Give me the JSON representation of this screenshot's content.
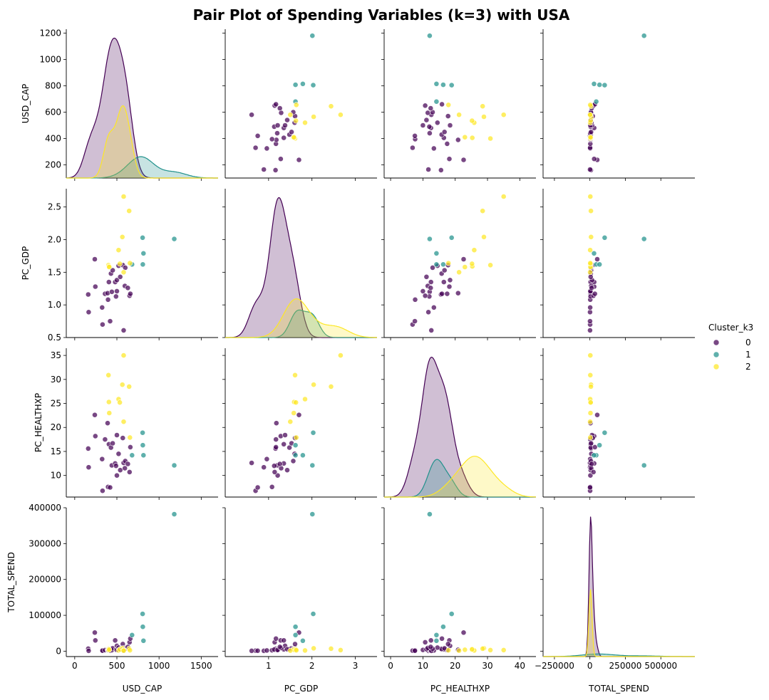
{
  "chart_data": {
    "type": "scatter",
    "title": "Pair Plot of Spending Variables (k=3) with USA",
    "variables": [
      "USD_CAP",
      "PC_GDP",
      "PC_HEALTHXP",
      "TOTAL_SPEND"
    ],
    "axes": {
      "USD_CAP": {
        "range": [
          -100,
          1700
        ],
        "ticks": [
          0,
          500,
          1000,
          1500
        ],
        "tick_labels": [
          "0",
          "500",
          "1000",
          "1500"
        ],
        "y_range": [
          100,
          1230
        ],
        "y_ticks": [
          200,
          400,
          600,
          800,
          1000,
          1200
        ],
        "y_tick_labels": [
          "200",
          "400",
          "600",
          "800",
          "1000",
          "1200"
        ]
      },
      "PC_GDP": {
        "range": [
          0.0,
          3.5
        ],
        "ticks": [
          1,
          2,
          3
        ],
        "tick_labels": [
          "1",
          "2",
          "3"
        ],
        "y_range": [
          0.5,
          2.78
        ],
        "y_ticks": [
          0.5,
          1.0,
          1.5,
          2.0,
          2.5
        ],
        "y_tick_labels": [
          "0.5",
          "1.0",
          "1.5",
          "2.0",
          "2.5"
        ]
      },
      "PC_HEALTHXP": {
        "range": [
          -2,
          45
        ],
        "ticks": [
          0,
          10,
          20,
          30,
          40
        ],
        "tick_labels": [
          "0",
          "10",
          "20",
          "30",
          "40"
        ],
        "y_range": [
          5.5,
          36.5
        ],
        "y_ticks": [
          10,
          15,
          20,
          25,
          30,
          35
        ],
        "y_tick_labels": [
          "10",
          "15",
          "20",
          "25",
          "30",
          "35"
        ]
      },
      "TOTAL_SPEND": {
        "range": [
          -330000,
          740000
        ],
        "ticks": [
          -250000,
          0,
          250000,
          500000
        ],
        "tick_labels": [
          "−250000",
          "0",
          "250000",
          "500000"
        ],
        "y_range": [
          -15000,
          400000
        ],
        "y_ticks": [
          0,
          100000,
          200000,
          300000,
          400000
        ],
        "y_tick_labels": [
          "0",
          "100000",
          "200000",
          "300000",
          "400000"
        ]
      }
    },
    "legend": {
      "title": "Cluster_k3",
      "entries": [
        "0",
        "1",
        "2"
      ],
      "placement": "right"
    },
    "colors": {
      "0": "#440154",
      "1": "#21918c",
      "2": "#fde725"
    },
    "series": [
      {
        "name": "0",
        "points": [
          {
            "USD_CAP": 160,
            "PC_GDP": 1.16,
            "PC_HEALTHXP": 15.6,
            "TOTAL_SPEND": 7000
          },
          {
            "USD_CAP": 165,
            "PC_GDP": 0.89,
            "PC_HEALTHXP": 11.7,
            "TOTAL_SPEND": 1000
          },
          {
            "USD_CAP": 238,
            "PC_GDP": 1.7,
            "PC_HEALTHXP": 22.6,
            "TOTAL_SPEND": 52000
          },
          {
            "USD_CAP": 245,
            "PC_GDP": 1.28,
            "PC_HEALTHXP": 18.2,
            "TOTAL_SPEND": 30000
          },
          {
            "USD_CAP": 325,
            "PC_GDP": 0.96,
            "PC_HEALTHXP": 13.4,
            "TOTAL_SPEND": 2000
          },
          {
            "USD_CAP": 330,
            "PC_GDP": 0.7,
            "PC_HEALTHXP": 6.8,
            "TOTAL_SPEND": 1500
          },
          {
            "USD_CAP": 360,
            "PC_GDP": 1.17,
            "PC_HEALTHXP": 17.5,
            "TOTAL_SPEND": 3000
          },
          {
            "USD_CAP": 390,
            "PC_GDP": 1.18,
            "PC_HEALTHXP": 20.9,
            "TOTAL_SPEND": 4000
          },
          {
            "USD_CAP": 395,
            "PC_GDP": 1.08,
            "PC_HEALTHXP": 7.6,
            "TOTAL_SPEND": 2500
          },
          {
            "USD_CAP": 405,
            "PC_GDP": 1.35,
            "PC_HEALTHXP": 16.5,
            "TOTAL_SPEND": 5000
          },
          {
            "USD_CAP": 420,
            "PC_GDP": 0.75,
            "PC_HEALTHXP": 7.5,
            "TOTAL_SPEND": 1200
          },
          {
            "USD_CAP": 430,
            "PC_GDP": 1.48,
            "PC_HEALTHXP": 15.8,
            "TOTAL_SPEND": 6000
          },
          {
            "USD_CAP": 440,
            "PC_GDP": 1.2,
            "PC_HEALTHXP": 12.1,
            "TOTAL_SPEND": 2800
          },
          {
            "USD_CAP": 450,
            "PC_GDP": 1.53,
            "PC_HEALTHXP": 16.7,
            "TOTAL_SPEND": 8000
          },
          {
            "USD_CAP": 480,
            "PC_GDP": 1.35,
            "PC_HEALTHXP": 12.5,
            "TOTAL_SPEND": 30000
          },
          {
            "USD_CAP": 490,
            "PC_GDP": 1.13,
            "PC_HEALTHXP": 12.0,
            "TOTAL_SPEND": 4500
          },
          {
            "USD_CAP": 500,
            "PC_GDP": 1.38,
            "PC_HEALTHXP": 18.4,
            "TOTAL_SPEND": 15000
          },
          {
            "USD_CAP": 500,
            "PC_GDP": 1.21,
            "PC_HEALTHXP": 10.0,
            "TOTAL_SPEND": 3500
          },
          {
            "USD_CAP": 520,
            "PC_GDP": 1.6,
            "PC_HEALTHXP": 14.5,
            "TOTAL_SPEND": 10000
          },
          {
            "USD_CAP": 540,
            "PC_GDP": 1.43,
            "PC_HEALTHXP": 11.1,
            "TOTAL_SPEND": 5500
          },
          {
            "USD_CAP": 570,
            "PC_GDP": 1.61,
            "PC_HEALTHXP": 17.8,
            "TOTAL_SPEND": 20000
          },
          {
            "USD_CAP": 580,
            "PC_GDP": 0.61,
            "PC_HEALTHXP": 12.6,
            "TOTAL_SPEND": 1000
          },
          {
            "USD_CAP": 595,
            "PC_GDP": 1.29,
            "PC_HEALTHXP": 11.5,
            "TOTAL_SPEND": 9000
          },
          {
            "USD_CAP": 600,
            "PC_GDP": 1.57,
            "PC_HEALTHXP": 13.0,
            "TOTAL_SPEND": 7000
          },
          {
            "USD_CAP": 630,
            "PC_GDP": 1.26,
            "PC_HEALTHXP": 12.4,
            "TOTAL_SPEND": 12000
          },
          {
            "USD_CAP": 650,
            "PC_GDP": 1.14,
            "PC_HEALTHXP": 10.7,
            "TOTAL_SPEND": 25000
          },
          {
            "USD_CAP": 660,
            "PC_GDP": 1.17,
            "PC_HEALTHXP": 15.9,
            "TOTAL_SPEND": 35000
          }
        ]
      },
      {
        "name": "1",
        "points": [
          {
            "USD_CAP": 680,
            "PC_GDP": 1.62,
            "PC_HEALTHXP": 14.2,
            "TOTAL_SPEND": 45000
          },
          {
            "USD_CAP": 805,
            "PC_GDP": 2.03,
            "PC_HEALTHXP": 18.9,
            "TOTAL_SPEND": 104000
          },
          {
            "USD_CAP": 808,
            "PC_GDP": 1.62,
            "PC_HEALTHXP": 16.3,
            "TOTAL_SPEND": 68000
          },
          {
            "USD_CAP": 815,
            "PC_GDP": 1.79,
            "PC_HEALTHXP": 14.2,
            "TOTAL_SPEND": 29000
          },
          {
            "USD_CAP": 1180,
            "PC_GDP": 2.01,
            "PC_HEALTHXP": 12.1,
            "TOTAL_SPEND": 382000
          }
        ]
      },
      {
        "name": "2",
        "points": [
          {
            "USD_CAP": 400,
            "PC_GDP": 1.61,
            "PC_HEALTHXP": 30.9,
            "TOTAL_SPEND": 3000
          },
          {
            "USD_CAP": 405,
            "PC_GDP": 1.59,
            "PC_HEALTHXP": 25.3,
            "TOTAL_SPEND": 6000
          },
          {
            "USD_CAP": 410,
            "PC_GDP": 1.58,
            "PC_HEALTHXP": 23.0,
            "TOTAL_SPEND": 4000
          },
          {
            "USD_CAP": 520,
            "PC_GDP": 1.84,
            "PC_HEALTHXP": 25.9,
            "TOTAL_SPEND": 2000
          },
          {
            "USD_CAP": 535,
            "PC_GDP": 1.63,
            "PC_HEALTHXP": 25.2,
            "TOTAL_SPEND": 5000
          },
          {
            "USD_CAP": 565,
            "PC_GDP": 2.04,
            "PC_HEALTHXP": 28.9,
            "TOTAL_SPEND": 8000
          },
          {
            "USD_CAP": 580,
            "PC_GDP": 2.66,
            "PC_HEALTHXP": 35.0,
            "TOTAL_SPEND": 3000
          },
          {
            "USD_CAP": 580,
            "PC_GDP": 1.5,
            "PC_HEALTHXP": 21.2,
            "TOTAL_SPEND": 1500
          },
          {
            "USD_CAP": 645,
            "PC_GDP": 2.44,
            "PC_HEALTHXP": 28.5,
            "TOTAL_SPEND": 7000
          },
          {
            "USD_CAP": 655,
            "PC_GDP": 1.64,
            "PC_HEALTHXP": 17.9,
            "TOTAL_SPEND": 2500
          }
        ]
      }
    ],
    "diagonal": "kde"
  }
}
